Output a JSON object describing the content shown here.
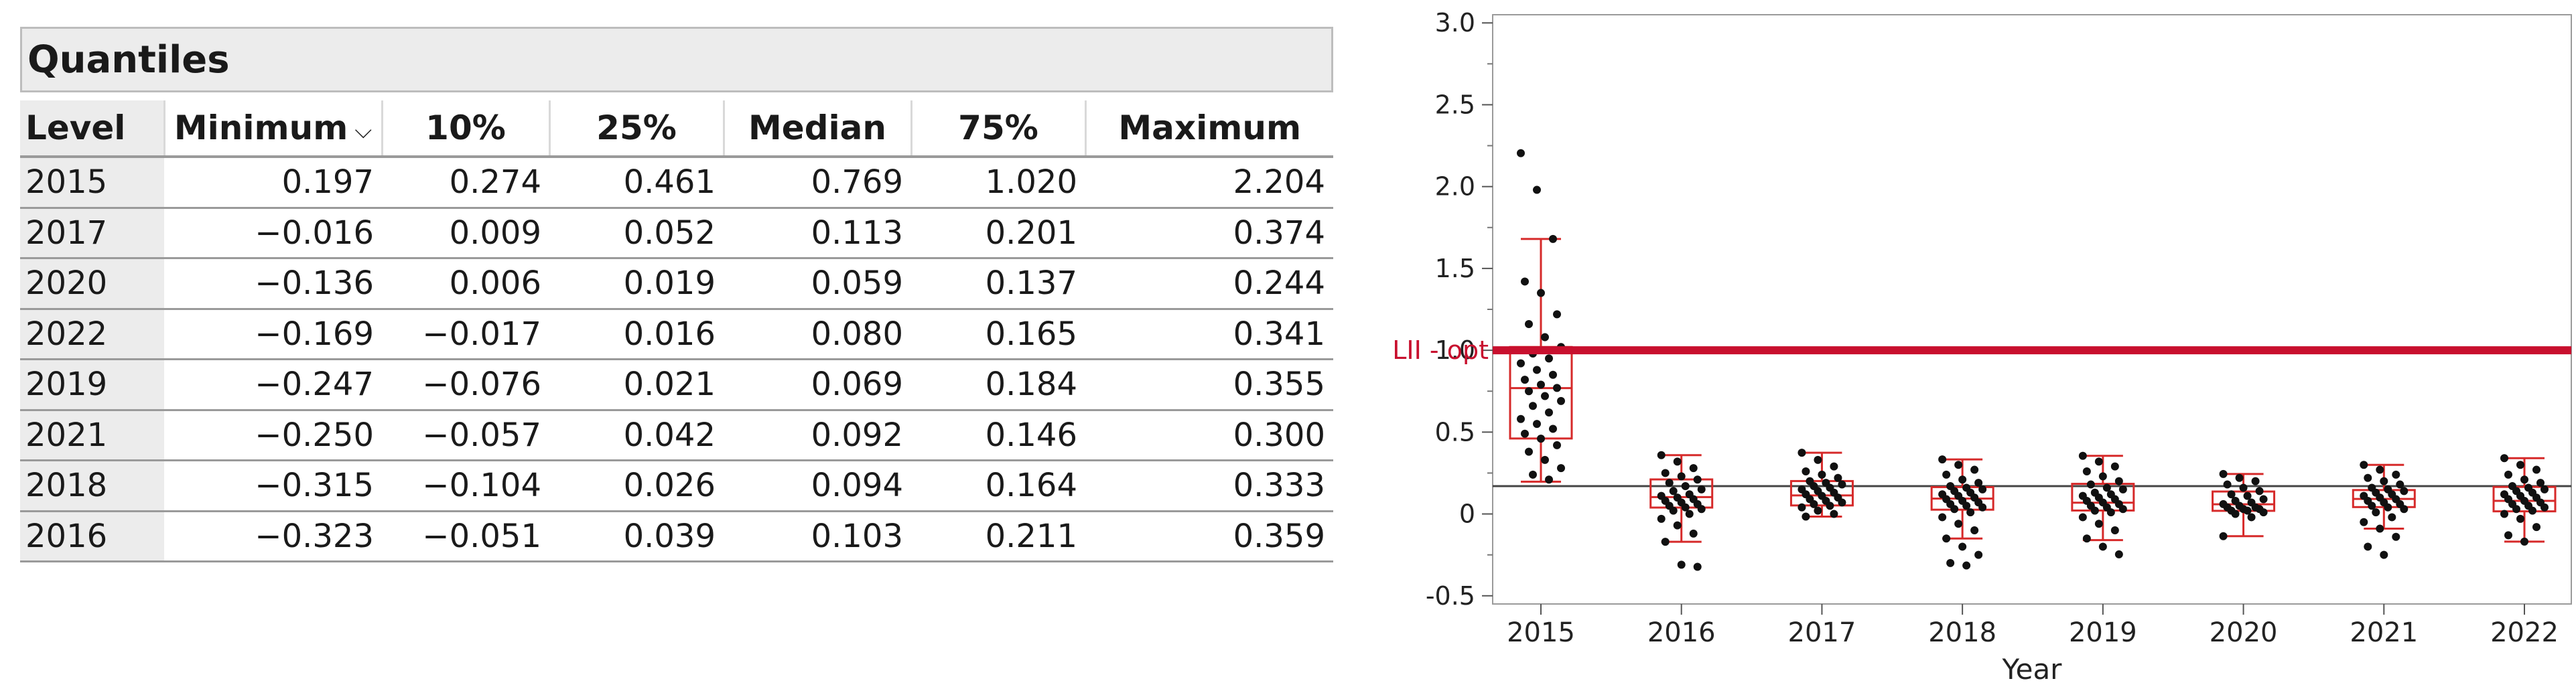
{
  "quantiles": {
    "title": "Quantiles",
    "columns": [
      "Level",
      "Minimum",
      "10%",
      "25%",
      "Median",
      "75%",
      "Maximum"
    ],
    "sort_indicator": "⌵",
    "rows": [
      [
        "2015",
        "0.197",
        "0.274",
        "0.461",
        "0.769",
        "1.020",
        "2.204"
      ],
      [
        "2017",
        "−0.016",
        "0.009",
        "0.052",
        "0.113",
        "0.201",
        "0.374"
      ],
      [
        "2020",
        "−0.136",
        "0.006",
        "0.019",
        "0.059",
        "0.137",
        "0.244"
      ],
      [
        "2022",
        "−0.169",
        "−0.017",
        "0.016",
        "0.080",
        "0.165",
        "0.341"
      ],
      [
        "2019",
        "−0.247",
        "−0.076",
        "0.021",
        "0.069",
        "0.184",
        "0.355"
      ],
      [
        "2021",
        "−0.250",
        "−0.057",
        "0.042",
        "0.092",
        "0.146",
        "0.300"
      ],
      [
        "2018",
        "−0.315",
        "−0.104",
        "0.026",
        "0.094",
        "0.164",
        "0.333"
      ],
      [
        "2016",
        "−0.323",
        "−0.051",
        "0.039",
        "0.103",
        "0.211",
        "0.359"
      ]
    ]
  },
  "chart_data": {
    "type": "scatter",
    "subtype": "jittered dot plot with box plots",
    "xlabel": "Year",
    "ylabel": "",
    "categories": [
      "2015",
      "2016",
      "2017",
      "2018",
      "2019",
      "2020",
      "2021",
      "2022"
    ],
    "ylim": [
      -0.55,
      3.05
    ],
    "yticks": [
      -0.5,
      0,
      0.5,
      1.0,
      1.5,
      2.0,
      2.5,
      3.0
    ],
    "ytick_labels": [
      "-0.5",
      "0",
      "0.5",
      "1.0",
      "1.5",
      "2.0",
      "2.5",
      "3.0"
    ],
    "grid": false,
    "overall_mean_line": 0.17,
    "reference_line": {
      "label": "LII - opt",
      "value": 1.0,
      "color": "#c8102e"
    },
    "box_color": "#d62a2a",
    "point_color": "#111111",
    "boxes": [
      {
        "category": "2015",
        "min": 0.197,
        "q1": 0.461,
        "median": 0.769,
        "q3": 1.02,
        "max": 2.204,
        "whisker_high": 1.68
      },
      {
        "category": "2016",
        "min": -0.323,
        "q1": 0.039,
        "median": 0.103,
        "q3": 0.211,
        "max": 0.359,
        "whisker_low": -0.17
      },
      {
        "category": "2017",
        "min": -0.016,
        "q1": 0.052,
        "median": 0.113,
        "q3": 0.201,
        "max": 0.374
      },
      {
        "category": "2018",
        "min": -0.315,
        "q1": 0.026,
        "median": 0.094,
        "q3": 0.164,
        "max": 0.333,
        "whisker_low": -0.15
      },
      {
        "category": "2019",
        "min": -0.247,
        "q1": 0.021,
        "median": 0.069,
        "q3": 0.184,
        "max": 0.355,
        "whisker_low": -0.16
      },
      {
        "category": "2020",
        "min": -0.136,
        "q1": 0.019,
        "median": 0.059,
        "q3": 0.137,
        "max": 0.244
      },
      {
        "category": "2021",
        "min": -0.25,
        "q1": 0.042,
        "median": 0.092,
        "q3": 0.146,
        "max": 0.3,
        "whisker_low": -0.09
      },
      {
        "category": "2022",
        "min": -0.169,
        "q1": 0.016,
        "median": 0.08,
        "q3": 0.165,
        "max": 0.341
      }
    ],
    "points": [
      {
        "category": "2015",
        "y": [
          2.204,
          1.98,
          1.68,
          1.42,
          1.35,
          1.22,
          1.16,
          1.08,
          1.02,
          0.98,
          0.95,
          0.92,
          0.88,
          0.85,
          0.82,
          0.79,
          0.77,
          0.75,
          0.72,
          0.69,
          0.66,
          0.62,
          0.58,
          0.55,
          0.52,
          0.49,
          0.46,
          0.42,
          0.38,
          0.33,
          0.28,
          0.24,
          0.21
        ]
      },
      {
        "category": "2016",
        "y": [
          0.359,
          0.32,
          0.28,
          0.25,
          0.23,
          0.21,
          0.19,
          0.17,
          0.15,
          0.14,
          0.12,
          0.11,
          0.1,
          0.09,
          0.08,
          0.07,
          0.06,
          0.05,
          0.04,
          0.03,
          0.02,
          0.0,
          -0.03,
          -0.07,
          -0.12,
          -0.17,
          -0.31,
          -0.323
        ]
      },
      {
        "category": "2017",
        "y": [
          0.374,
          0.33,
          0.29,
          0.26,
          0.24,
          0.22,
          0.2,
          0.19,
          0.18,
          0.17,
          0.16,
          0.15,
          0.14,
          0.13,
          0.12,
          0.11,
          0.1,
          0.09,
          0.08,
          0.07,
          0.06,
          0.05,
          0.04,
          0.02,
          0.0,
          -0.016
        ]
      },
      {
        "category": "2018",
        "y": [
          0.333,
          0.3,
          0.27,
          0.24,
          0.21,
          0.19,
          0.17,
          0.16,
          0.15,
          0.14,
          0.13,
          0.12,
          0.11,
          0.1,
          0.09,
          0.08,
          0.07,
          0.06,
          0.05,
          0.04,
          0.03,
          0.01,
          -0.02,
          -0.06,
          -0.1,
          -0.15,
          -0.2,
          -0.25,
          -0.3,
          -0.315
        ]
      },
      {
        "category": "2019",
        "y": [
          0.355,
          0.32,
          0.29,
          0.26,
          0.23,
          0.2,
          0.18,
          0.16,
          0.15,
          0.13,
          0.12,
          0.11,
          0.1,
          0.09,
          0.08,
          0.07,
          0.06,
          0.05,
          0.04,
          0.03,
          0.02,
          0.01,
          -0.02,
          -0.06,
          -0.1,
          -0.15,
          -0.2,
          -0.247
        ]
      },
      {
        "category": "2020",
        "y": [
          0.244,
          0.22,
          0.2,
          0.18,
          0.16,
          0.14,
          0.12,
          0.11,
          0.09,
          0.08,
          0.07,
          0.06,
          0.05,
          0.04,
          0.04,
          0.03,
          0.03,
          0.02,
          0.02,
          0.01,
          0.0,
          -0.02,
          -0.136
        ]
      },
      {
        "category": "2021",
        "y": [
          0.3,
          0.27,
          0.24,
          0.22,
          0.2,
          0.18,
          0.16,
          0.15,
          0.14,
          0.13,
          0.12,
          0.11,
          0.1,
          0.09,
          0.08,
          0.07,
          0.06,
          0.05,
          0.04,
          0.03,
          0.01,
          -0.02,
          -0.05,
          -0.09,
          -0.14,
          -0.2,
          -0.25
        ]
      },
      {
        "category": "2022",
        "y": [
          0.341,
          0.3,
          0.27,
          0.24,
          0.21,
          0.19,
          0.17,
          0.16,
          0.15,
          0.14,
          0.13,
          0.12,
          0.11,
          0.1,
          0.09,
          0.08,
          0.07,
          0.06,
          0.05,
          0.04,
          0.03,
          0.02,
          0.0,
          -0.03,
          -0.08,
          -0.13,
          -0.169
        ]
      }
    ]
  }
}
